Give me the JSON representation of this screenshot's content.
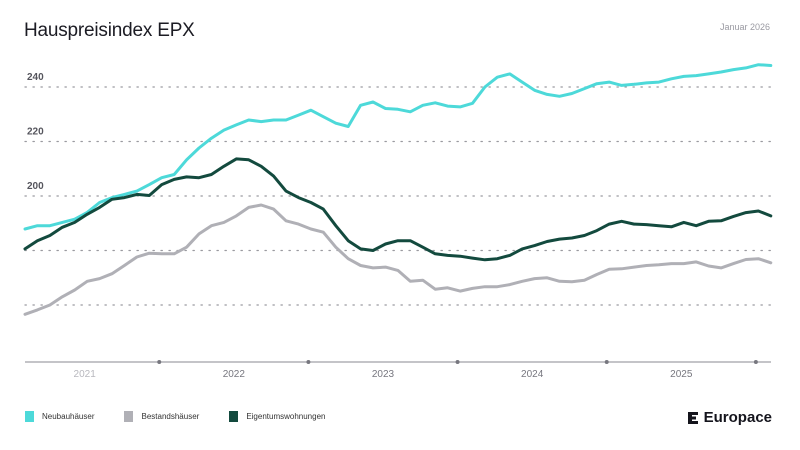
{
  "chart_data": {
    "type": "line",
    "title": "Hauspreisindex EPX",
    "subtitle": "Januar 2026",
    "xlabel": "",
    "ylabel": "",
    "x_start": "2021-01",
    "x_end": "2026-01",
    "x_frequency": "monthly",
    "year_labels": [
      "2021",
      "2022",
      "2023",
      "2024",
      "2025"
    ],
    "y_ticks": [
      240,
      220,
      200
    ],
    "y_gridlines": [
      160,
      180,
      200,
      220,
      240
    ],
    "ylim": [
      140,
      250
    ],
    "grid": true,
    "legend_position": "bottom-left",
    "series": [
      {
        "name": "Neubauhäuser",
        "color": "#4dd9d9",
        "values": [
          187.9,
          189.1,
          189.1,
          190.3,
          191.5,
          194,
          197.6,
          199.4,
          200.6,
          201.8,
          204.2,
          206.7,
          207.9,
          213.3,
          217.6,
          221.2,
          224.2,
          226.1,
          227.9,
          227.3,
          227.9,
          227.9,
          229.7,
          231.5,
          229.1,
          226.7,
          225.5,
          233.3,
          234.5,
          232.1,
          231.8,
          230.9,
          233.3,
          234.2,
          233,
          232.7,
          234,
          240,
          243.6,
          244.8,
          241.8,
          238.8,
          237.3,
          236.6,
          237.6,
          239.4,
          241.2,
          241.8,
          240.6,
          241,
          241.5,
          241.8,
          243,
          243.9,
          244.2,
          244.8,
          245.5,
          246.4,
          247,
          248.2,
          247.9
        ]
      },
      {
        "name": "Bestandshäuser",
        "color": "#b0b0b6",
        "values": [
          156.6,
          158.2,
          160,
          163,
          165.5,
          168.7,
          169.7,
          171.5,
          174.5,
          177.6,
          179,
          178.8,
          178.8,
          181.2,
          186.1,
          189.1,
          190.3,
          192.7,
          195.8,
          196.7,
          195.2,
          190.9,
          189.7,
          187.9,
          186.7,
          181.2,
          177,
          174.5,
          173.6,
          173.9,
          172.7,
          168.7,
          169.1,
          165.8,
          166.3,
          165.1,
          166.1,
          166.7,
          166.7,
          167.5,
          168.7,
          169.7,
          170,
          168.7,
          168.5,
          169.1,
          171.2,
          173.1,
          173.3,
          173.9,
          174.5,
          174.8,
          175.2,
          175.2,
          175.8,
          174.3,
          173.6,
          175.2,
          176.7,
          177,
          175.5
        ]
      },
      {
        "name": "Eigentumswohnungen",
        "color": "#134a3e",
        "values": [
          180.6,
          183.6,
          185.5,
          188.5,
          190.3,
          193.3,
          195.8,
          198.8,
          199.4,
          200.6,
          200.2,
          204.2,
          206.1,
          207,
          206.7,
          207.9,
          210.9,
          213.6,
          213.3,
          210.9,
          207.3,
          201.8,
          199.4,
          197.6,
          195.2,
          189.1,
          183.6,
          180.6,
          180,
          182.4,
          183.6,
          183.6,
          181.2,
          178.8,
          178.2,
          177.9,
          177.2,
          176.6,
          177,
          178.2,
          180.6,
          181.8,
          183.3,
          184.2,
          184.6,
          185.5,
          187.3,
          189.7,
          190.7,
          189.7,
          189.5,
          189.1,
          188.7,
          190.3,
          189.1,
          190.7,
          190.9,
          192.5,
          193.9,
          194.5,
          192.7
        ]
      }
    ]
  },
  "brand": {
    "name": "Europace"
  }
}
